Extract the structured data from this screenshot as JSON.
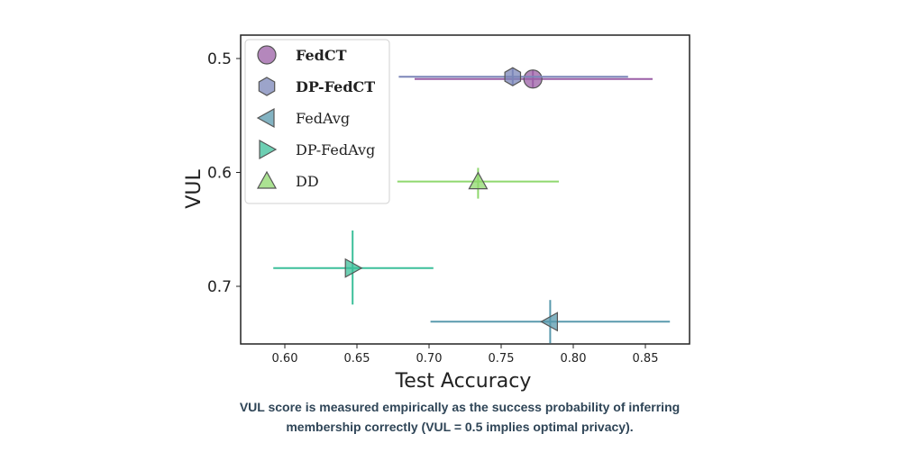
{
  "chart_data": {
    "type": "scatter",
    "xlabel": "Test Accuracy",
    "ylabel": "VUL",
    "xlim": [
      0.568,
      0.877
    ],
    "ylim": [
      0.75,
      0.478
    ],
    "y_inverted": true,
    "grid": false,
    "legend_position": "top-left",
    "xticks": [
      "0.60",
      "0.65",
      "0.70",
      "0.75",
      "0.80",
      "0.85"
    ],
    "xtick_values": [
      0.6,
      0.65,
      0.7,
      0.75,
      0.8,
      0.85
    ],
    "yticks": [
      "0.5",
      "0.6",
      "0.7"
    ],
    "ytick_values": [
      0.5,
      0.6,
      0.7
    ],
    "series": [
      {
        "name": "FedCT",
        "marker": "circle",
        "color": "#9b5fa6",
        "bold": true,
        "x": 0.772,
        "y": 0.518,
        "x_err": [
          0.69,
          0.855
        ],
        "y_err": [
          0.51,
          0.526
        ]
      },
      {
        "name": "DP-FedCT",
        "marker": "hexagon",
        "color": "#7b86b8",
        "bold": true,
        "x": 0.758,
        "y": 0.516,
        "x_err": [
          0.679,
          0.838
        ],
        "y_err": [
          0.508,
          0.524
        ]
      },
      {
        "name": "FedAvg",
        "marker": "triangle-left",
        "color": "#5a9aad",
        "bold": false,
        "x": 0.784,
        "y": 0.731,
        "x_err": [
          0.701,
          0.867
        ],
        "y_err": [
          0.712,
          0.75
        ]
      },
      {
        "name": "DP-FedAvg",
        "marker": "triangle-right",
        "color": "#3cbf9a",
        "bold": false,
        "x": 0.647,
        "y": 0.684,
        "x_err": [
          0.592,
          0.703
        ],
        "y_err": [
          0.651,
          0.716
        ]
      },
      {
        "name": "DD",
        "marker": "triangle-up",
        "color": "#8fd86e",
        "bold": false,
        "x": 0.734,
        "y": 0.608,
        "x_err": [
          0.678,
          0.79
        ],
        "y_err": [
          0.596,
          0.623
        ]
      }
    ]
  },
  "legend": {
    "items": [
      {
        "label": "FedCT"
      },
      {
        "label": "DP-FedCT"
      },
      {
        "label": "FedAvg"
      },
      {
        "label": "DP-FedAvg"
      },
      {
        "label": "DD"
      }
    ]
  },
  "caption": {
    "line1": "VUL score is measured empirically as the success probability of inferring",
    "line2": "membership correctly (VUL = 0.5 implies optimal privacy)."
  }
}
